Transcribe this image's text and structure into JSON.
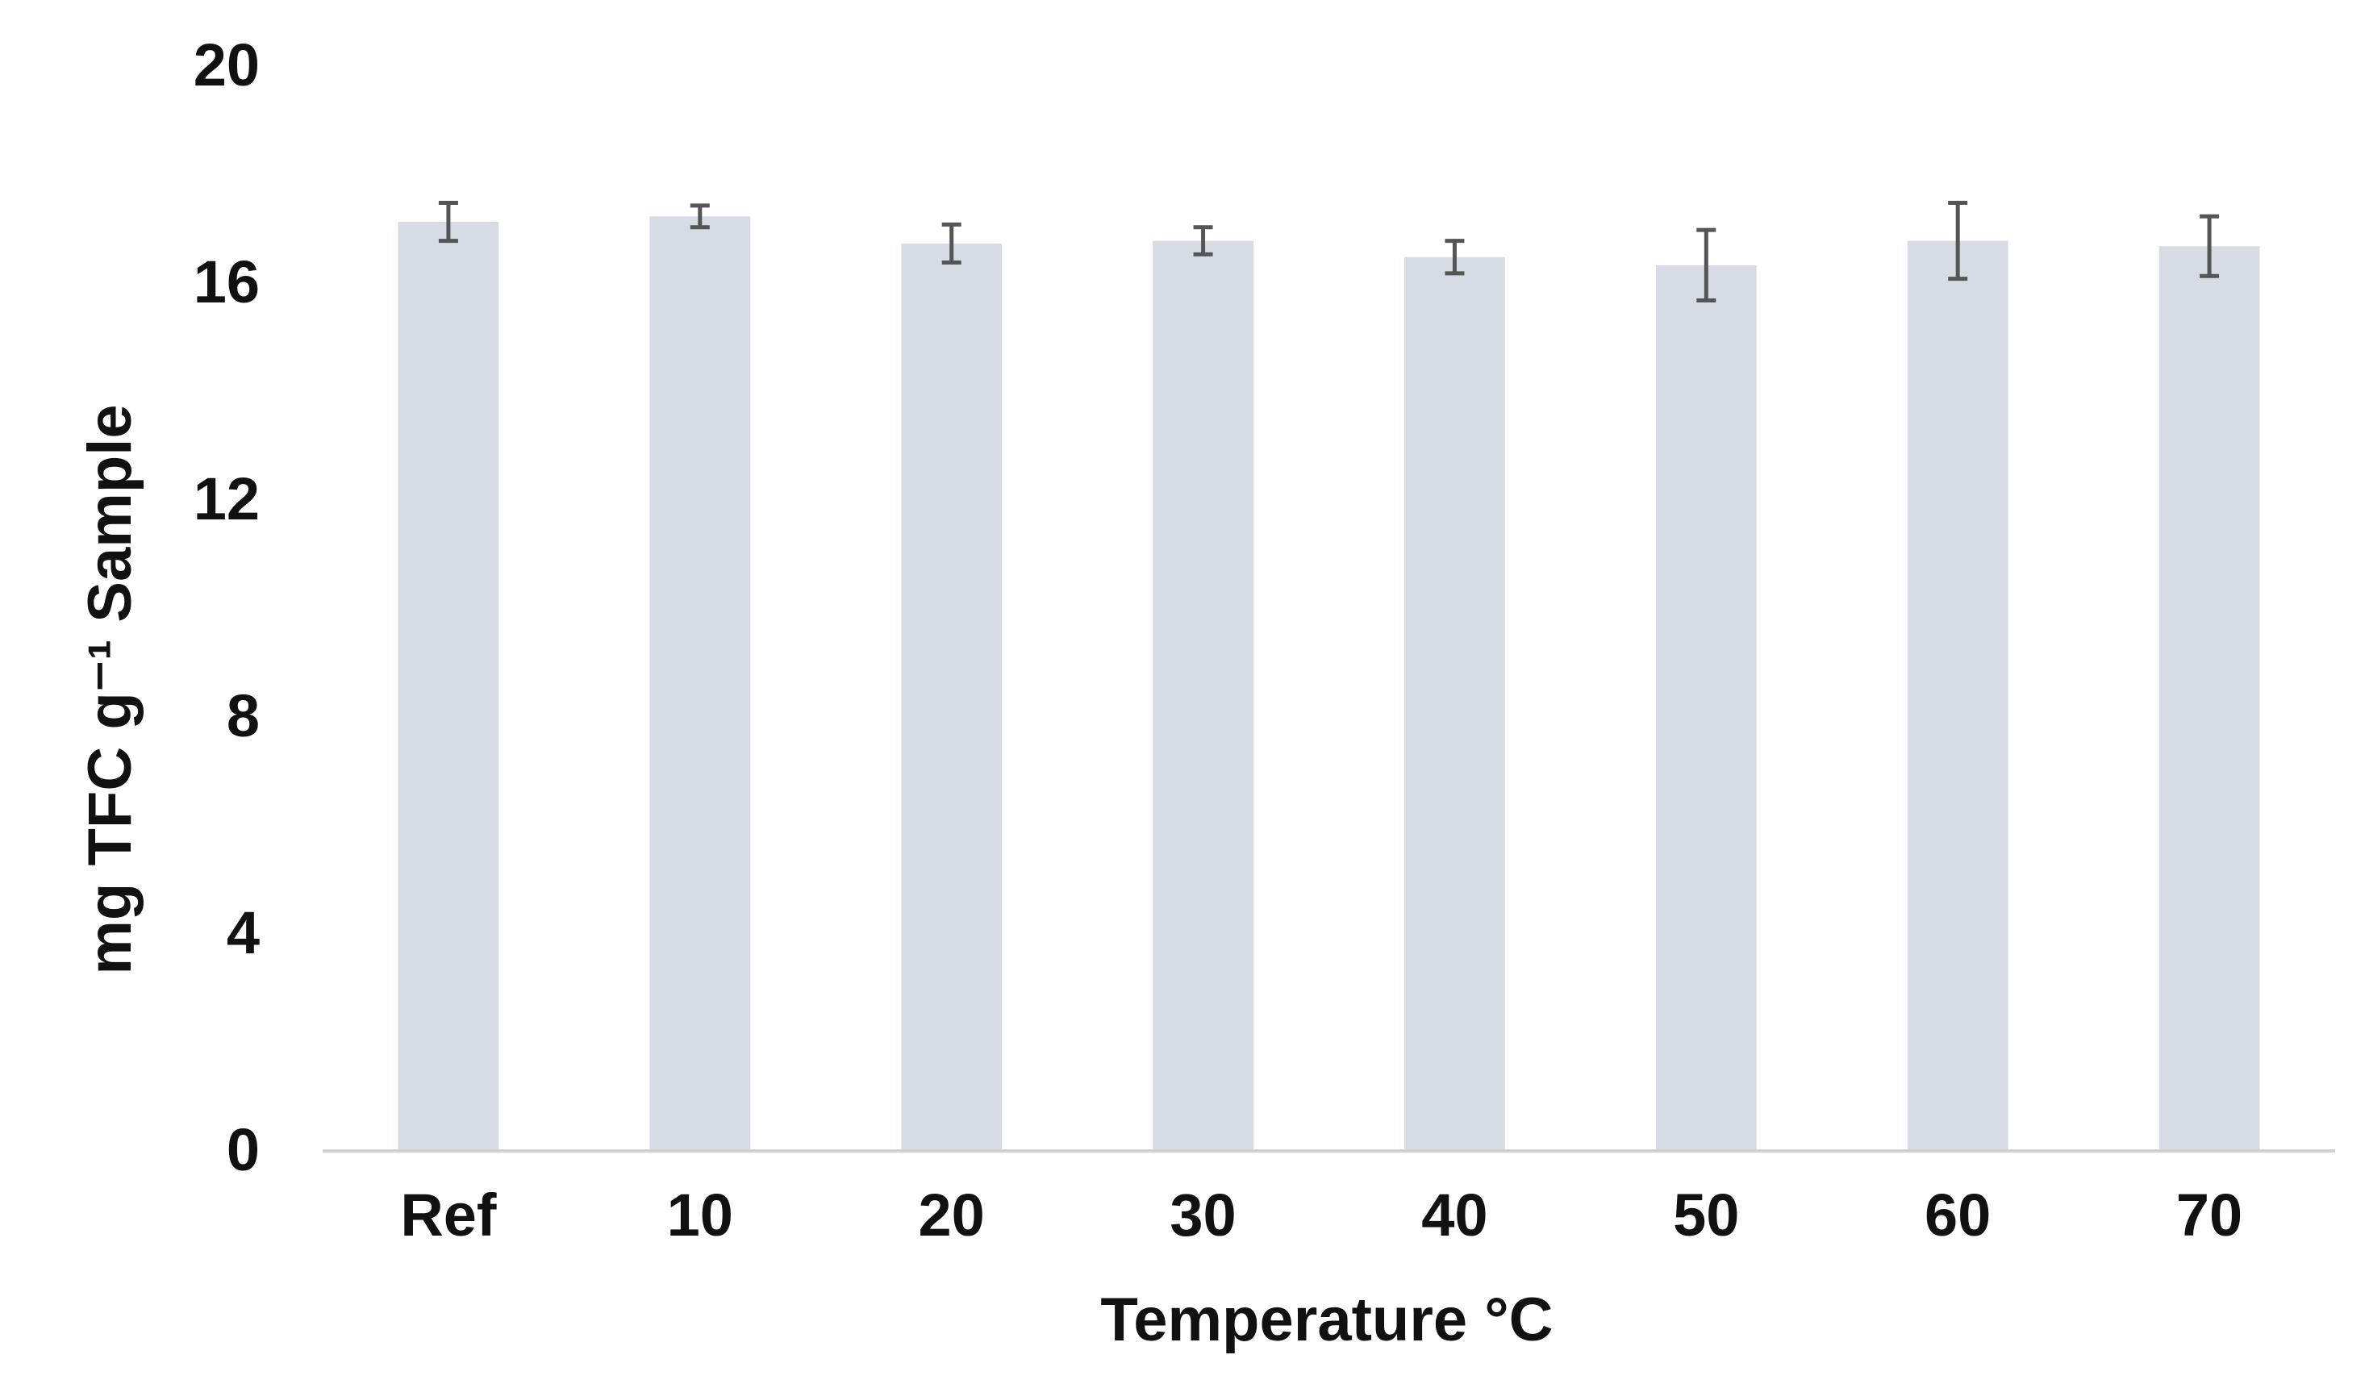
{
  "chart_data": {
    "type": "bar",
    "categories": [
      "Ref",
      "10",
      "20",
      "30",
      "40",
      "50",
      "60",
      "70"
    ],
    "series": [
      {
        "values": [
          17.1,
          17.2,
          16.7,
          16.75,
          16.45,
          16.3,
          16.75,
          16.65
        ],
        "errors": [
          0.35,
          0.2,
          0.35,
          0.25,
          0.3,
          0.65,
          0.7,
          0.55
        ]
      }
    ],
    "xlabel": "Temperature °C",
    "ylabel": "mg TFC g⁻¹ Sample",
    "ylim": [
      0,
      20
    ],
    "yticks": [
      0,
      4,
      8,
      12,
      16,
      20
    ],
    "grid": false,
    "legend": "none",
    "colors": {
      "bar": "#d6dbe4",
      "error_bar": "#555555",
      "axis": "#d0d0d0",
      "text": "#111111"
    }
  }
}
